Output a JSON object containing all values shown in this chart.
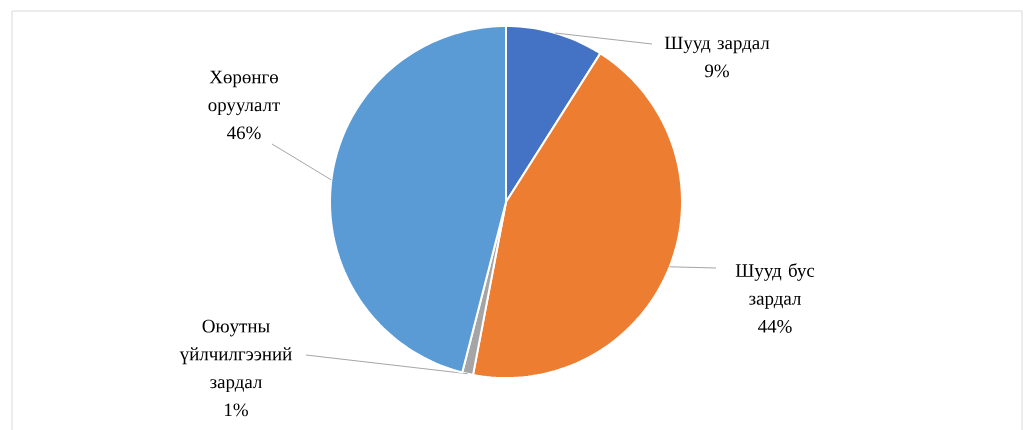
{
  "chart_data": {
    "type": "pie",
    "categories": [
      "Шууд зардал",
      "Шууд бус зардал",
      "Оюутны үйлчилгээний зардал",
      "Хөрөнгө оруулалт"
    ],
    "values": [
      9,
      44,
      1,
      46
    ],
    "colors": [
      "#4472c4",
      "#ed7d31",
      "#a5a5a5",
      "#5b9bd5"
    ],
    "value_labels": [
      "9%",
      "44%",
      "1%",
      "46%"
    ]
  }
}
